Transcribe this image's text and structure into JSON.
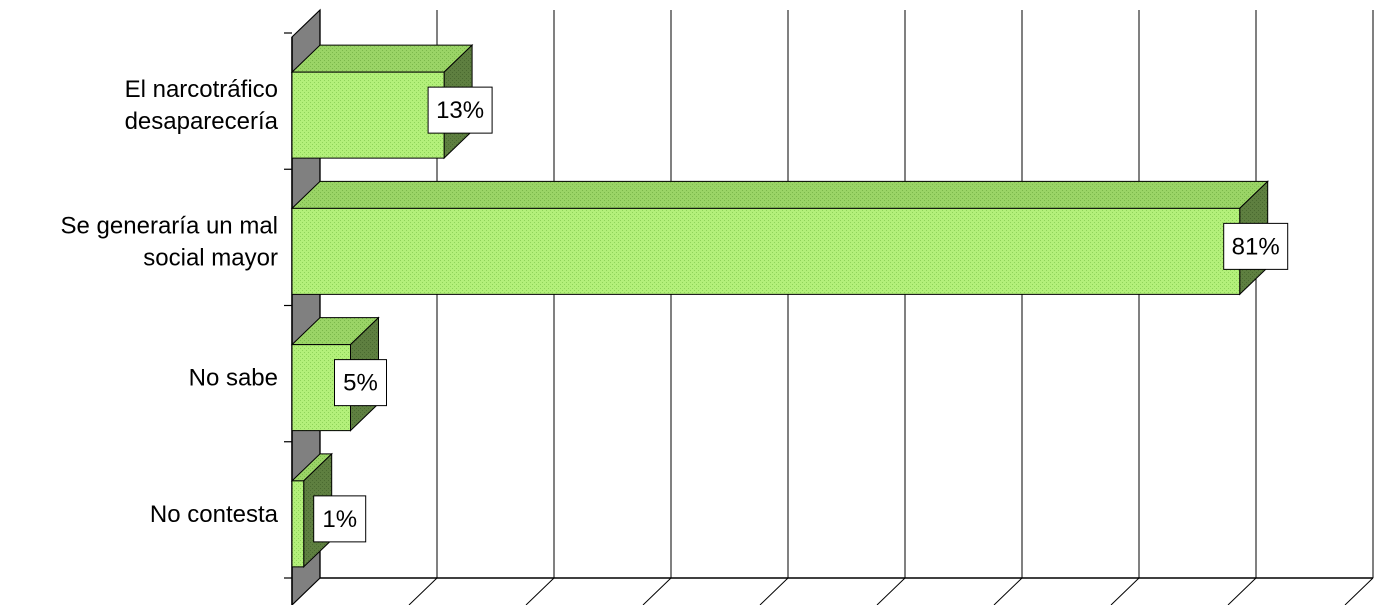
{
  "chart_data": {
    "type": "bar",
    "orientation": "horizontal",
    "three_d": true,
    "title": "",
    "xlabel": "",
    "ylabel": "",
    "categories": [
      [
        "El narcotráfico",
        "desaparecería"
      ],
      [
        "Se generaría un mal",
        "social mayor"
      ],
      [
        "No sabe"
      ],
      [
        "No contesta"
      ]
    ],
    "values": [
      13,
      81,
      5,
      1
    ],
    "data_labels": [
      "13%",
      "81%",
      "5%",
      "1%"
    ],
    "xlim": [
      0,
      90
    ],
    "grid": "vertical",
    "legend": "none",
    "bar_colors": {
      "front": "#b3f07a",
      "top": "#9ad466",
      "side": "#5e7f40"
    }
  }
}
